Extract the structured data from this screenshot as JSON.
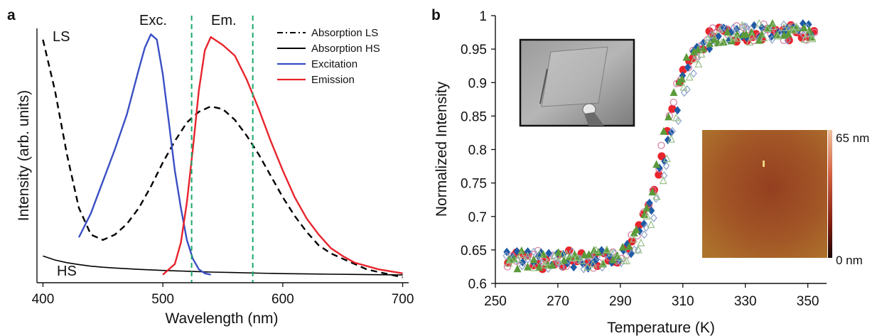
{
  "chart_data": [
    {
      "panel_label": "a",
      "type": "line",
      "xlabel": "Wavelength (nm)",
      "ylabel": "Intensity (arb. units)",
      "xlim": [
        395,
        705
      ],
      "ylim": [
        0,
        1
      ],
      "xticks": [
        400,
        500,
        600,
        700
      ],
      "grid": false,
      "legend_position": "top-right",
      "legend": [
        {
          "label": "Absorption  LS",
          "style": "dash-dot",
          "color": "#000000"
        },
        {
          "label": "Absorption  HS",
          "style": "solid",
          "color": "#000000"
        },
        {
          "label": "Excitation",
          "style": "solid",
          "color": "#3a4fc4"
        },
        {
          "label": "Emission",
          "style": "solid",
          "color": "#e8242c"
        }
      ],
      "annotations": {
        "ls": "LS",
        "hs": "HS",
        "exc": "Exc.",
        "em": "Em."
      },
      "vlines": [
        {
          "x": 524,
          "color": "#1aa86a",
          "style": "dashed"
        },
        {
          "x": 575,
          "color": "#1aa86a",
          "style": "dashed"
        }
      ],
      "series": [
        {
          "key": "abs_ls",
          "color": "#000000",
          "dash": "9,6",
          "x": [
            400,
            410,
            420,
            430,
            440,
            450,
            460,
            470,
            480,
            490,
            500,
            510,
            520,
            530,
            540,
            550,
            560,
            570,
            580,
            590,
            600,
            610,
            620,
            630,
            640,
            650,
            660,
            670,
            680,
            690,
            700
          ],
          "y": [
            0.91,
            0.72,
            0.48,
            0.28,
            0.18,
            0.16,
            0.18,
            0.22,
            0.28,
            0.36,
            0.45,
            0.53,
            0.6,
            0.64,
            0.66,
            0.65,
            0.61,
            0.55,
            0.48,
            0.4,
            0.32,
            0.25,
            0.19,
            0.14,
            0.11,
            0.09,
            0.07,
            0.05,
            0.04,
            0.03,
            0.02
          ]
        },
        {
          "key": "abs_hs",
          "color": "#000000",
          "dash": "",
          "x": [
            400,
            410,
            420,
            430,
            440,
            450,
            460,
            480,
            500,
            520,
            540,
            560,
            580,
            600,
            620,
            640,
            660,
            680,
            700
          ],
          "y": [
            0.1,
            0.085,
            0.075,
            0.068,
            0.062,
            0.058,
            0.055,
            0.05,
            0.046,
            0.043,
            0.04,
            0.038,
            0.036,
            0.034,
            0.033,
            0.032,
            0.031,
            0.03,
            0.029
          ]
        },
        {
          "key": "excitation",
          "color": "#3a4fc4",
          "dash": "",
          "x": [
            430,
            440,
            450,
            460,
            470,
            480,
            485,
            490,
            495,
            500,
            505,
            510,
            515,
            520,
            525,
            530,
            535,
            540
          ],
          "y": [
            0.17,
            0.26,
            0.38,
            0.5,
            0.63,
            0.8,
            0.88,
            0.93,
            0.91,
            0.78,
            0.6,
            0.42,
            0.28,
            0.16,
            0.09,
            0.05,
            0.035,
            0.03
          ]
        },
        {
          "key": "emission",
          "color": "#e8242c",
          "dash": "",
          "x": [
            500,
            510,
            515,
            520,
            525,
            530,
            535,
            540,
            550,
            560,
            570,
            580,
            590,
            600,
            610,
            620,
            630,
            640,
            650,
            660,
            680,
            700
          ],
          "y": [
            0.03,
            0.07,
            0.15,
            0.3,
            0.5,
            0.72,
            0.87,
            0.92,
            0.89,
            0.85,
            0.76,
            0.65,
            0.53,
            0.42,
            0.32,
            0.24,
            0.18,
            0.13,
            0.1,
            0.075,
            0.05,
            0.035
          ]
        }
      ]
    },
    {
      "panel_label": "b",
      "type": "scatter",
      "xlabel": "Temperature (K)",
      "ylabel": "Normalized Intensity",
      "xlim": [
        250,
        356
      ],
      "ylim": [
        0.6,
        1.0
      ],
      "xticks": [
        250,
        270,
        290,
        310,
        330,
        350
      ],
      "yticks": [
        0.6,
        0.65,
        0.7,
        0.75,
        0.8,
        0.85,
        0.9,
        0.95,
        1
      ],
      "yticklabels": [
        "0.6",
        "0.65",
        "0.7",
        "0.75",
        "0.8",
        "0.85",
        "0.9",
        "0.95",
        "1"
      ],
      "grid": false,
      "series": [
        {
          "key": "filled_circle_red",
          "marker": "circle",
          "filled": true,
          "color": "#e8242c",
          "offset": 0,
          "seed": 1
        },
        {
          "key": "open_circle_pink",
          "marker": "circle",
          "filled": false,
          "color": "#d07aa0",
          "offset": -0.5,
          "seed": 2
        },
        {
          "key": "filled_diamond_blue",
          "marker": "diamond",
          "filled": true,
          "color": "#1f5aa6",
          "offset": 0.8,
          "seed": 3
        },
        {
          "key": "open_diamond_blue",
          "marker": "diamond",
          "filled": false,
          "color": "#8aa0c8",
          "offset": 2.2,
          "seed": 4
        },
        {
          "key": "filled_triangle_green",
          "marker": "triangle",
          "filled": true,
          "color": "#5a9a3a",
          "offset": -0.8,
          "seed": 5
        },
        {
          "key": "open_triangle_green",
          "marker": "triangle",
          "filled": false,
          "color": "#9ac08a",
          "offset": 1.8,
          "seed": 6
        }
      ],
      "sigmoid": {
        "low": 0.635,
        "high": 0.975,
        "center": 304,
        "width": 4.2
      },
      "inset_photo": {
        "description": "photo-inset"
      },
      "inset_afm": {
        "scale_max": "65 nm",
        "scale_min": "0 nm"
      }
    }
  ]
}
